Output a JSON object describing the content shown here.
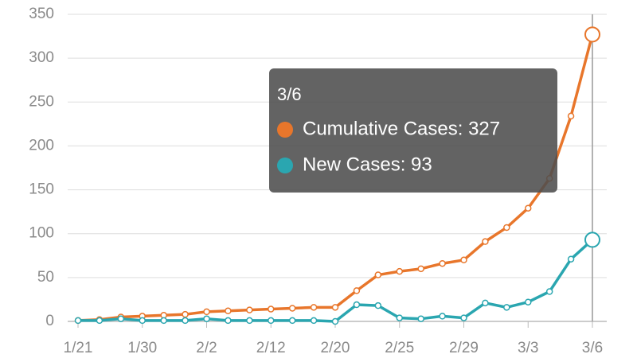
{
  "chart_data": {
    "type": "line",
    "categories": [
      "1/21",
      null,
      null,
      "1/30",
      null,
      null,
      "2/2",
      null,
      null,
      "2/12",
      null,
      null,
      "2/20",
      null,
      null,
      "2/25",
      null,
      null,
      "2/29",
      null,
      null,
      "3/3",
      null,
      null,
      "3/6"
    ],
    "series": [
      {
        "color": "#e8762b",
        "values": [
          1,
          2,
          5,
          6,
          7,
          8,
          11,
          12,
          13,
          14,
          15,
          16,
          16,
          35,
          53,
          57,
          60,
          66,
          70,
          91,
          107,
          129,
          163,
          234,
          327
        ]
      },
      {
        "color": "#2aa6b0",
        "values": [
          1,
          1,
          3,
          1,
          1,
          1,
          3,
          1,
          1,
          1,
          1,
          1,
          0,
          19,
          18,
          4,
          3,
          6,
          4,
          21,
          16,
          22,
          34,
          71,
          93
        ]
      }
    ],
    "ylim": [
      0,
      350
    ],
    "yticks": [
      0,
      50,
      100,
      150,
      200,
      250,
      300,
      350
    ],
    "grid": true,
    "tooltip": {
      "title": "3/6",
      "lines": [
        "Cumulative Cases: 327",
        "New Cases: 93"
      ]
    }
  }
}
